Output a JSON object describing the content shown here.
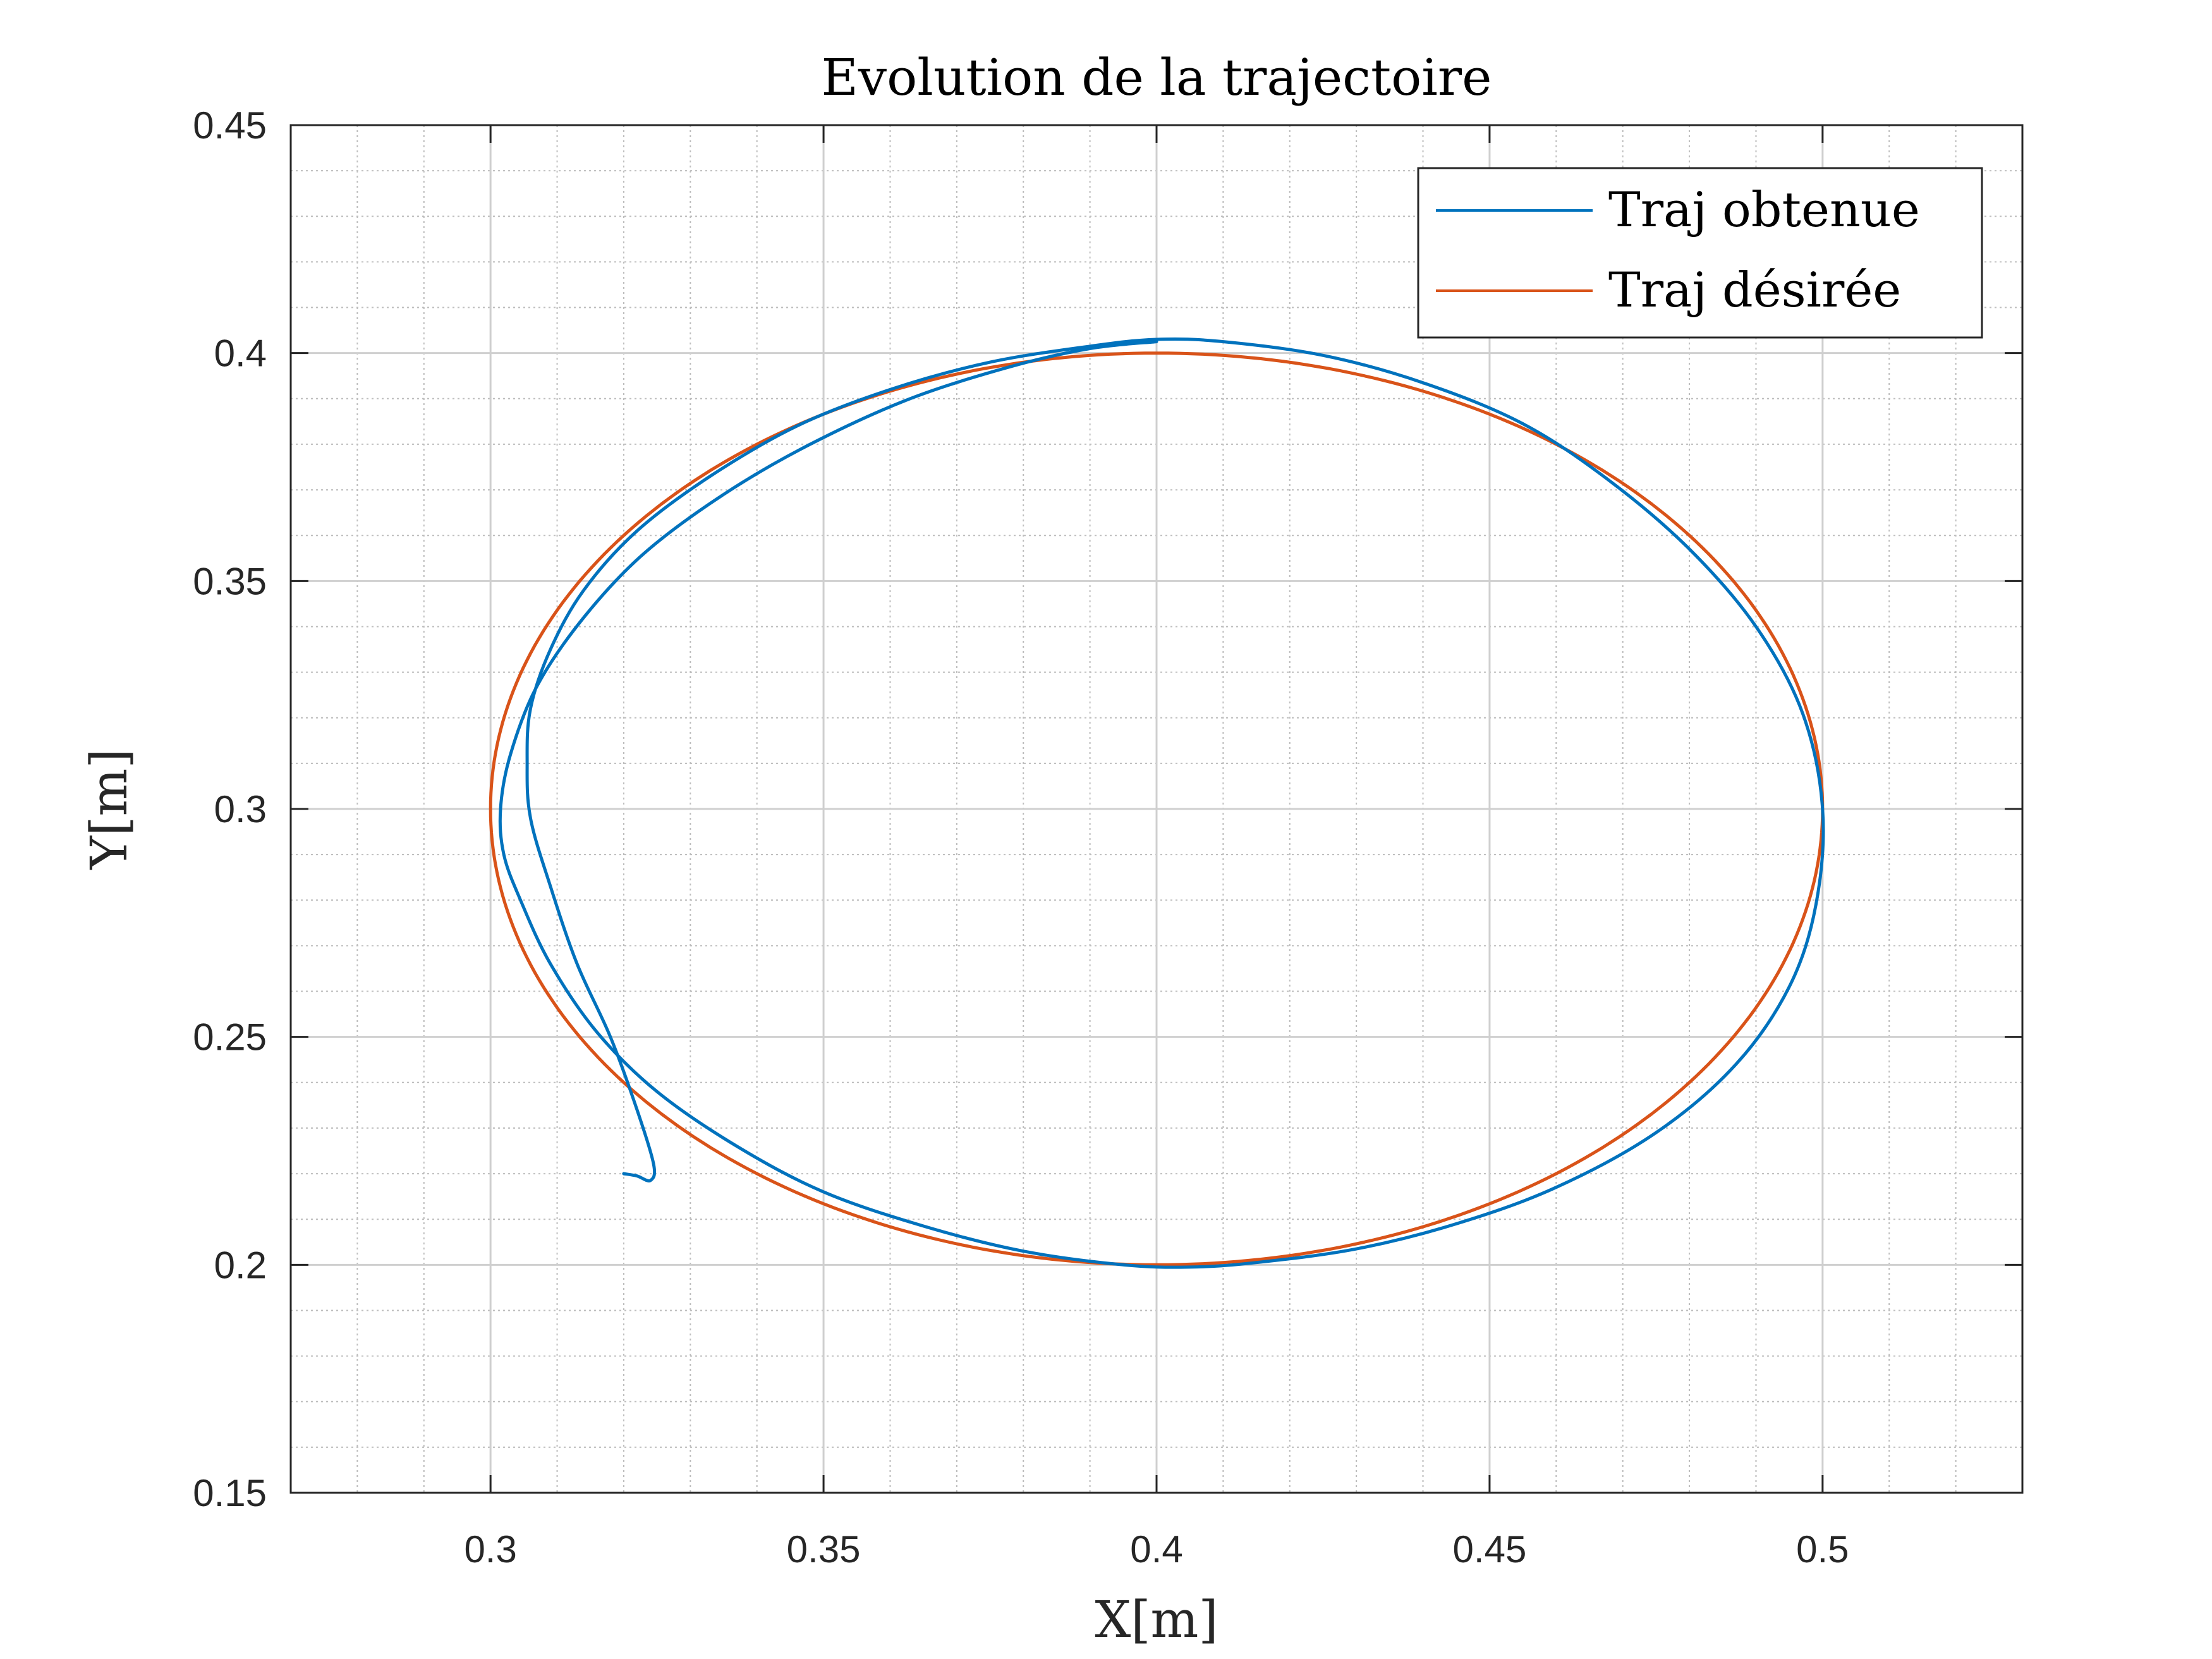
{
  "chart_data": {
    "type": "line",
    "title": "Evolution de la trajectoire",
    "xlabel": "X[m]",
    "ylabel": "Y[m]",
    "xlim": [
      0.27,
      0.53
    ],
    "ylim": [
      0.15,
      0.45
    ],
    "xticks": [
      "0.3",
      "0.35",
      "0.4",
      "0.45",
      "0.5"
    ],
    "yticks": [
      "0.15",
      "0.2",
      "0.25",
      "0.3",
      "0.35",
      "0.4",
      "0.45"
    ],
    "grid": true,
    "minor_grid": true,
    "legend_position": "top-right",
    "series": [
      {
        "name": "Traj obtenue",
        "color": "#0072BD",
        "x": [
          0.32,
          0.322,
          0.324,
          0.3245,
          0.322,
          0.318,
          0.313,
          0.309,
          0.306,
          0.3055,
          0.306,
          0.309,
          0.314,
          0.322,
          0.333,
          0.346,
          0.36,
          0.375,
          0.39,
          0.4,
          0.41,
          0.425,
          0.44,
          0.455,
          0.468,
          0.48,
          0.49,
          0.497,
          0.5,
          0.499,
          0.495,
          0.487,
          0.475,
          0.46,
          0.445,
          0.43,
          0.415,
          0.405,
          0.395,
          0.38,
          0.365,
          0.35,
          0.337,
          0.325,
          0.316,
          0.309,
          0.3045,
          0.302,
          0.3015,
          0.303,
          0.307,
          0.314,
          0.323,
          0.335,
          0.348,
          0.363,
          0.378,
          0.39,
          0.4
        ],
        "y": [
          0.22,
          0.2195,
          0.2185,
          0.222,
          0.234,
          0.25,
          0.266,
          0.283,
          0.298,
          0.31,
          0.322,
          0.335,
          0.348,
          0.361,
          0.373,
          0.384,
          0.392,
          0.398,
          0.4015,
          0.403,
          0.4025,
          0.3995,
          0.3935,
          0.3845,
          0.372,
          0.357,
          0.34,
          0.321,
          0.3,
          0.279,
          0.261,
          0.244,
          0.229,
          0.217,
          0.209,
          0.2035,
          0.2005,
          0.1995,
          0.2,
          0.203,
          0.2085,
          0.216,
          0.226,
          0.238,
          0.251,
          0.266,
          0.28,
          0.29,
          0.3,
          0.312,
          0.327,
          0.342,
          0.356,
          0.369,
          0.38,
          0.39,
          0.397,
          0.401,
          0.4025
        ]
      },
      {
        "name": "Traj désirée",
        "color": "#D95319",
        "ellipse": {
          "center_x": 0.4,
          "center_y": 0.3,
          "radius_x": 0.1,
          "radius_y": 0.1
        }
      }
    ]
  }
}
